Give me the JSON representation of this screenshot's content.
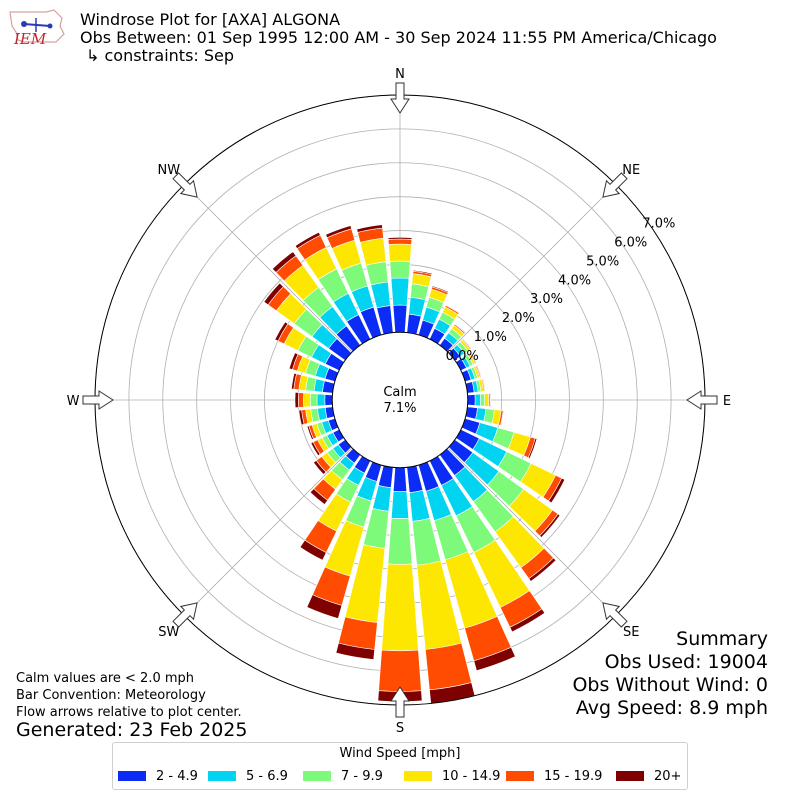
{
  "header": {
    "title": "Windrose Plot for [AXA] ALGONA",
    "obs_between": "Obs Between: 01 Sep 1995 12:00 AM - 30 Sep 2024 11:55 PM America/Chicago",
    "constraints": "↳ constraints: Sep",
    "logo_text": "IEM"
  },
  "notes": {
    "calm_def": "Calm values are < 2.0 mph",
    "bar_convention": "Bar Convention: Meteorology",
    "flow_arrows": "Flow arrows relative to plot center.",
    "generated": "Generated: 23 Feb 2025"
  },
  "summary": {
    "heading": "Summary",
    "obs_used": "Obs Used: 19004",
    "obs_without_wind": "Obs Without Wind: 0",
    "avg_speed": "Avg Speed: 8.9 mph"
  },
  "legend": {
    "title": "Wind Speed [mph]",
    "items": [
      {
        "label": "2 - 4.9",
        "color": "#0a2cf5"
      },
      {
        "label": "5 - 6.9",
        "color": "#00d4f0"
      },
      {
        "label": "7 - 9.9",
        "color": "#7dfa7a"
      },
      {
        "label": "10 - 14.9",
        "color": "#fde600"
      },
      {
        "label": "15 - 19.9",
        "color": "#ff4c00"
      },
      {
        "label": "20+",
        "color": "#7f0000"
      }
    ]
  },
  "chart_data": {
    "type": "windrose",
    "calm_label": "Calm",
    "calm_value": "7.1%",
    "radial_axis": {
      "min": -2.0,
      "max": 7.0,
      "ticks": [
        0,
        1,
        2,
        3,
        4,
        5,
        6,
        7
      ],
      "tick_labels": [
        "0.0%",
        "1.0%",
        "2.0%",
        "3.0%",
        "4.0%",
        "5.0%",
        "6.0%",
        "7.0%"
      ]
    },
    "compass_labels": [
      "N",
      "NE",
      "E",
      "SE",
      "S",
      "SW",
      "W",
      "NW"
    ],
    "directions_deg": [
      0,
      10,
      20,
      30,
      40,
      50,
      60,
      70,
      80,
      90,
      100,
      110,
      120,
      130,
      140,
      150,
      160,
      170,
      180,
      190,
      200,
      210,
      220,
      230,
      240,
      250,
      260,
      270,
      280,
      290,
      300,
      310,
      320,
      330,
      340,
      350
    ],
    "speed_bins": [
      "2 - 4.9",
      "5 - 6.9",
      "7 - 9.9",
      "10 - 14.9",
      "15 - 19.9",
      "20+"
    ],
    "series_cumulative_percent": [
      [
        0.8,
        1.6,
        2.1,
        2.6,
        2.75,
        2.8
      ],
      [
        0.55,
        1.05,
        1.45,
        1.75,
        1.82,
        1.85
      ],
      [
        0.45,
        0.85,
        1.15,
        1.4,
        1.47,
        1.5
      ],
      [
        0.35,
        0.65,
        0.88,
        1.05,
        1.1,
        1.12
      ],
      [
        0.25,
        0.45,
        0.6,
        0.72,
        0.76,
        0.78
      ],
      [
        0.2,
        0.35,
        0.47,
        0.56,
        0.59,
        0.6
      ],
      [
        0.18,
        0.3,
        0.4,
        0.47,
        0.5,
        0.52
      ],
      [
        0.18,
        0.3,
        0.38,
        0.45,
        0.48,
        0.5
      ],
      [
        0.2,
        0.32,
        0.4,
        0.48,
        0.51,
        0.53
      ],
      [
        0.22,
        0.38,
        0.5,
        0.62,
        0.66,
        0.68
      ],
      [
        0.3,
        0.55,
        0.8,
        1.0,
        1.06,
        1.08
      ],
      [
        0.45,
        1.0,
        1.5,
        2.0,
        2.15,
        2.2
      ],
      [
        0.6,
        1.5,
        2.3,
        3.1,
        3.3,
        3.4
      ],
      [
        0.65,
        1.6,
        2.5,
        3.55,
        3.75,
        3.82
      ],
      [
        0.75,
        1.7,
        2.8,
        4.1,
        4.5,
        4.6
      ],
      [
        0.8,
        1.8,
        3.0,
        4.8,
        5.45,
        5.6
      ],
      [
        0.8,
        1.7,
        2.9,
        5.0,
        6.0,
        6.3
      ],
      [
        0.75,
        1.6,
        2.9,
        5.4,
        6.6,
        7.0
      ],
      [
        0.7,
        1.5,
        2.85,
        5.4,
        6.6,
        6.9
      ],
      [
        0.6,
        1.3,
        2.4,
        4.6,
        5.4,
        5.7
      ],
      [
        0.5,
        1.1,
        1.9,
        3.4,
        4.3,
        4.7
      ],
      [
        0.4,
        0.8,
        1.35,
        2.3,
        3.0,
        3.25
      ],
      [
        0.3,
        0.55,
        0.9,
        1.25,
        1.65,
        1.8
      ],
      [
        0.25,
        0.45,
        0.65,
        0.85,
        1.05,
        1.15
      ],
      [
        0.2,
        0.4,
        0.55,
        0.7,
        0.85,
        0.92
      ],
      [
        0.2,
        0.4,
        0.55,
        0.7,
        0.8,
        0.85
      ],
      [
        0.22,
        0.45,
        0.65,
        0.8,
        0.92,
        1.0
      ],
      [
        0.22,
        0.45,
        0.65,
        0.85,
        1.0,
        1.1
      ],
      [
        0.3,
        0.55,
        0.8,
        1.0,
        1.15,
        1.22
      ],
      [
        0.3,
        0.6,
        0.9,
        1.15,
        1.3,
        1.4
      ],
      [
        0.45,
        0.9,
        1.35,
        1.8,
        2.0,
        2.1
      ],
      [
        0.6,
        1.2,
        1.85,
        2.5,
        2.8,
        2.95
      ],
      [
        0.7,
        1.4,
        2.1,
        2.9,
        3.25,
        3.4
      ],
      [
        0.8,
        1.5,
        2.3,
        3.0,
        3.4,
        3.5
      ],
      [
        0.85,
        1.5,
        2.2,
        2.9,
        3.25,
        3.35
      ],
      [
        0.8,
        1.5,
        2.1,
        2.8,
        3.1,
        3.2
      ]
    ]
  }
}
